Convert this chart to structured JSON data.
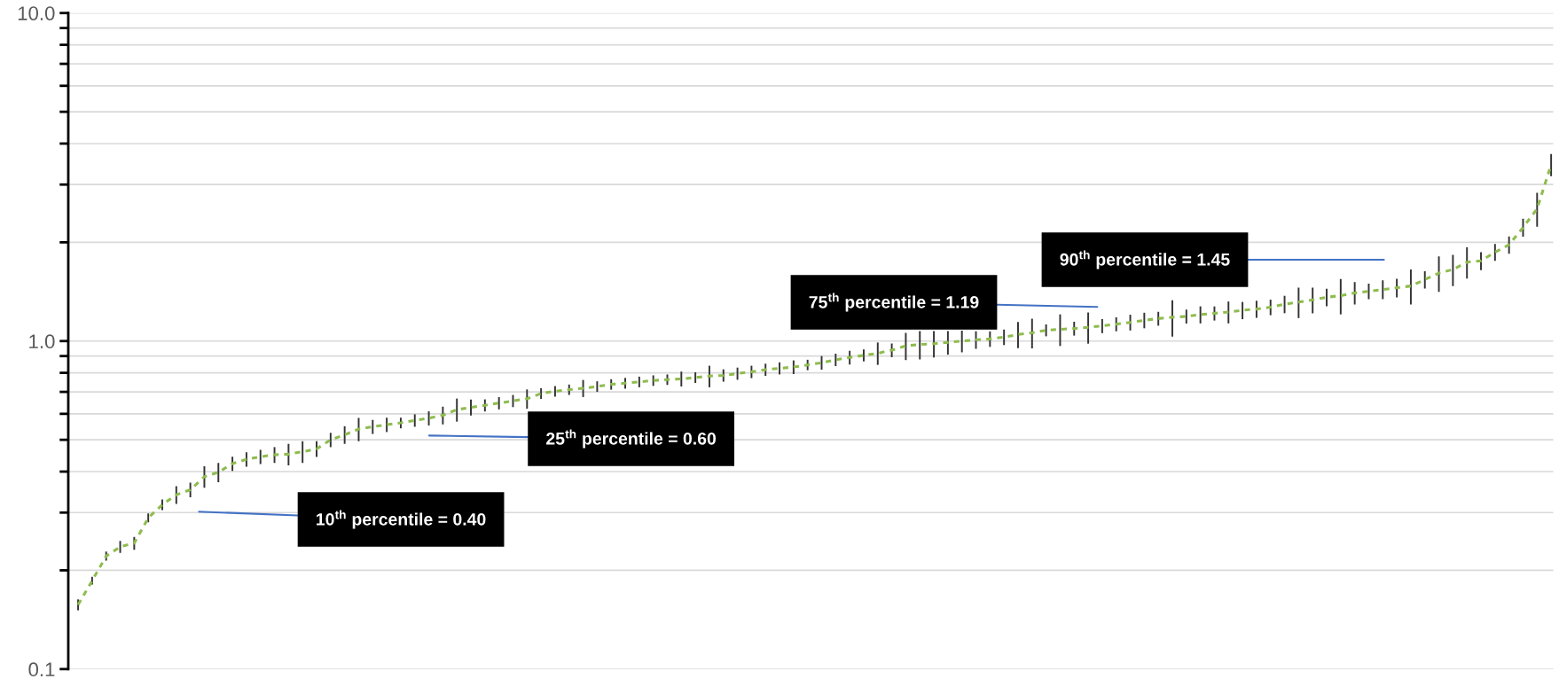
{
  "chart_data": {
    "type": "line",
    "categories": [
      null,
      null,
      null,
      null,
      null,
      null,
      null,
      null,
      null,
      null,
      null,
      null,
      null,
      null,
      null,
      null,
      null,
      null,
      null,
      null,
      null,
      null,
      null,
      null,
      null,
      null,
      null,
      null,
      null,
      null,
      null,
      null,
      null,
      null,
      null,
      null,
      null,
      null,
      null,
      null,
      null,
      null,
      null,
      null,
      null,
      null,
      null,
      null,
      null,
      null,
      null,
      null,
      null,
      null,
      null,
      null,
      null,
      null,
      null,
      null,
      null,
      null,
      null,
      null,
      null,
      null,
      null,
      null,
      null,
      null,
      null,
      null,
      null,
      null,
      null,
      null,
      null,
      null,
      null,
      null,
      null,
      null,
      null,
      null,
      null,
      null,
      null,
      null,
      null,
      null,
      null,
      null,
      null,
      null,
      null,
      null,
      null,
      null,
      null,
      null,
      null,
      null,
      null,
      null,
      null,
      null
    ],
    "series": [
      {
        "color": "#8fbc4f",
        "line_style": "dashed",
        "marker": "none",
        "values": [
          0.157,
          0.186,
          0.221,
          0.236,
          0.242,
          0.289,
          0.317,
          0.34,
          0.352,
          0.386,
          0.398,
          0.423,
          0.436,
          0.444,
          0.45,
          0.452,
          0.46,
          0.469,
          0.5,
          0.518,
          0.539,
          0.548,
          0.556,
          0.563,
          0.573,
          0.582,
          0.594,
          0.618,
          0.628,
          0.637,
          0.647,
          0.657,
          0.667,
          0.692,
          0.703,
          0.711,
          0.718,
          0.727,
          0.738,
          0.744,
          0.751,
          0.758,
          0.763,
          0.767,
          0.774,
          0.782,
          0.786,
          0.796,
          0.806,
          0.818,
          0.826,
          0.833,
          0.846,
          0.859,
          0.877,
          0.891,
          0.905,
          0.918,
          0.938,
          0.967,
          0.976,
          0.982,
          0.991,
          1.0,
          1.009,
          1.015,
          1.028,
          1.047,
          1.06,
          1.079,
          1.086,
          1.092,
          1.102,
          1.112,
          1.126,
          1.14,
          1.157,
          1.171,
          1.182,
          1.189,
          1.204,
          1.215,
          1.226,
          1.241,
          1.252,
          1.268,
          1.295,
          1.315,
          1.335,
          1.36,
          1.376,
          1.402,
          1.419,
          1.436,
          1.454,
          1.472,
          1.54,
          1.612,
          1.652,
          1.74,
          1.756,
          1.866,
          1.965,
          2.22,
          2.53,
          3.45
        ],
        "errors": [
          0.006,
          0.005,
          0.007,
          0.01,
          0.011,
          0.009,
          0.012,
          0.021,
          0.018,
          0.029,
          0.027,
          0.021,
          0.022,
          0.022,
          0.025,
          0.034,
          0.035,
          0.026,
          0.025,
          0.032,
          0.044,
          0.027,
          0.028,
          0.021,
          0.025,
          0.029,
          0.037,
          0.05,
          0.035,
          0.027,
          0.028,
          0.028,
          0.045,
          0.026,
          0.026,
          0.026,
          0.043,
          0.027,
          0.027,
          0.028,
          0.028,
          0.028,
          0.028,
          0.04,
          0.029,
          0.059,
          0.034,
          0.034,
          0.035,
          0.035,
          0.035,
          0.04,
          0.031,
          0.041,
          0.038,
          0.043,
          0.038,
          0.072,
          0.045,
          0.092,
          0.097,
          0.091,
          0.082,
          0.076,
          0.062,
          0.055,
          0.056,
          0.096,
          0.11,
          0.045,
          0.12,
          0.053,
          0.12,
          0.055,
          0.055,
          0.063,
          0.063,
          0.057,
          0.15,
          0.058,
          0.072,
          0.06,
          0.094,
          0.075,
          0.075,
          0.069,
          0.079,
          0.14,
          0.12,
          0.084,
          0.17,
          0.11,
          0.078,
          0.095,
          0.095,
          0.18,
          0.093,
          0.2,
          0.18,
          0.19,
          0.11,
          0.11,
          0.12,
          0.14,
          0.3,
          0.27
        ]
      }
    ],
    "log": true,
    "ylim": [
      0.1,
      10.0
    ],
    "yticks": [
      {
        "value": 0.1,
        "label": "0.1"
      },
      {
        "value": 0.2,
        "label": null
      },
      {
        "value": 0.3,
        "label": null
      },
      {
        "value": 0.4,
        "label": null
      },
      {
        "value": 0.5,
        "label": null
      },
      {
        "value": 0.6,
        "label": null
      },
      {
        "value": 0.7,
        "label": null
      },
      {
        "value": 0.8,
        "label": null
      },
      {
        "value": 0.9,
        "label": null
      },
      {
        "value": 1.0,
        "label": "1.0"
      },
      {
        "value": 2,
        "label": null
      },
      {
        "value": 3,
        "label": null
      },
      {
        "value": 4,
        "label": null
      },
      {
        "value": 5,
        "label": null
      },
      {
        "value": 6,
        "label": null
      },
      {
        "value": 7,
        "label": null
      },
      {
        "value": 8,
        "label": null
      },
      {
        "value": 9,
        "label": null
      },
      {
        "value": 10.0,
        "label": "10.0"
      }
    ],
    "grid": "y",
    "tick_labels": "y",
    "annotations": [
      "10$^{th}$ percentile = 0.40",
      "25$^{th}$ percentile = 0.60",
      "75$^{th}$ percentile = 1.19",
      "90$^{th}$ percentile = 1.45"
    ]
  }
}
